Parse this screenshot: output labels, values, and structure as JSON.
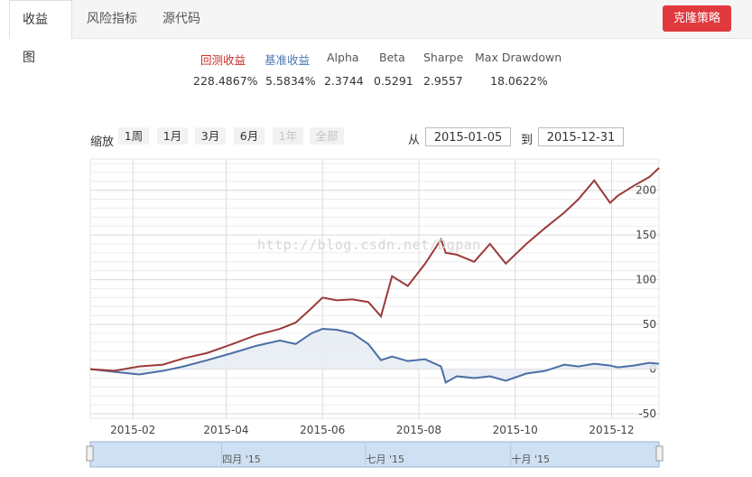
{
  "tabs": [
    "收益图",
    "风险指标",
    "源代码"
  ],
  "clone_button": "克隆策略",
  "metrics": {
    "labels": [
      "回测收益",
      "基准收益",
      "Alpha",
      "Beta",
      "Sharpe",
      "Max Drawdown"
    ],
    "values": [
      "228.4867%",
      "5.5834%",
      "2.3744",
      "0.5291",
      "2.9557",
      "18.0622%"
    ]
  },
  "zoom": {
    "label": "缩放",
    "buttons": [
      "1周",
      "1月",
      "3月",
      "6月",
      "1年",
      "全部"
    ],
    "from_label": "从",
    "from_value": "2015-01-05",
    "to_label": "到",
    "to_value": "2015-12-31"
  },
  "watermark": "http://blog.csdn.net/Dgpan",
  "colors": {
    "strategy": "#9b3a3a",
    "benchmark": "#4a6fa5",
    "benchmark_fill": "#e6ebf3",
    "clone_button": "#e0393e",
    "navigator_fill": "#cfe0f2"
  },
  "chart_data": {
    "type": "line",
    "x_tick_labels": [
      "2015-02",
      "2015-04",
      "2015-06",
      "2015-08",
      "2015-10",
      "2015-12"
    ],
    "y_tick_labels": [
      "200",
      "150",
      "100",
      "50",
      "0",
      "-50"
    ],
    "ylim": [
      -55,
      235
    ],
    "navigator_labels": [
      "四月 '15",
      "七月 '15",
      "十月 '15"
    ],
    "series": [
      {
        "key": "strategy",
        "x": [
          "2015-01-05",
          "2015-01-20",
          "2015-02-05",
          "2015-02-20",
          "2015-03-05",
          "2015-03-20",
          "2015-04-05",
          "2015-04-20",
          "2015-05-05",
          "2015-05-15",
          "2015-05-25",
          "2015-06-01",
          "2015-06-10",
          "2015-06-20",
          "2015-06-30",
          "2015-07-08",
          "2015-07-15",
          "2015-07-25",
          "2015-08-05",
          "2015-08-15",
          "2015-08-18",
          "2015-08-25",
          "2015-09-05",
          "2015-09-15",
          "2015-09-25",
          "2015-10-08",
          "2015-10-20",
          "2015-11-01",
          "2015-11-10",
          "2015-11-20",
          "2015-11-30",
          "2015-12-05",
          "2015-12-15",
          "2015-12-25",
          "2015-12-31"
        ],
        "values": [
          0,
          -2,
          3,
          5,
          12,
          18,
          28,
          38,
          45,
          52,
          68,
          80,
          77,
          78,
          75,
          59,
          104,
          93,
          118,
          145,
          130,
          128,
          120,
          140,
          118,
          140,
          158,
          175,
          190,
          211,
          186,
          194,
          205,
          215,
          225
        ]
      },
      {
        "key": "benchmark",
        "x": [
          "2015-01-05",
          "2015-01-20",
          "2015-02-05",
          "2015-02-20",
          "2015-03-05",
          "2015-03-20",
          "2015-04-05",
          "2015-04-20",
          "2015-05-05",
          "2015-05-15",
          "2015-05-25",
          "2015-06-01",
          "2015-06-10",
          "2015-06-20",
          "2015-06-30",
          "2015-07-08",
          "2015-07-15",
          "2015-07-25",
          "2015-08-05",
          "2015-08-15",
          "2015-08-18",
          "2015-08-25",
          "2015-09-05",
          "2015-09-15",
          "2015-09-25",
          "2015-10-08",
          "2015-10-20",
          "2015-11-01",
          "2015-11-10",
          "2015-11-20",
          "2015-11-30",
          "2015-12-05",
          "2015-12-15",
          "2015-12-25",
          "2015-12-31"
        ],
        "values": [
          0,
          -3,
          -6,
          -2,
          3,
          10,
          18,
          26,
          32,
          28,
          40,
          45,
          44,
          40,
          28,
          10,
          14,
          9,
          11,
          3,
          -15,
          -8,
          -10,
          -8,
          -13,
          -5,
          -2,
          5,
          3,
          6,
          4,
          2,
          4,
          7,
          6
        ]
      }
    ]
  }
}
